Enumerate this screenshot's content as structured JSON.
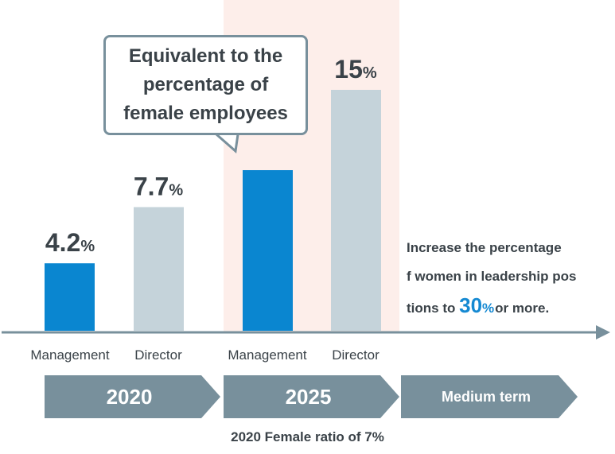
{
  "chart_data": {
    "type": "bar",
    "categories": [
      "Management",
      "Director",
      "Management",
      "Director"
    ],
    "values": [
      4.2,
      7.7,
      null,
      15
    ],
    "value_labels": [
      "4.2",
      "7.7",
      "",
      "15"
    ],
    "unit": "%",
    "groups": [
      "2020",
      "2020",
      "2025",
      "2025"
    ],
    "colors": [
      "#0a86d0",
      "#c5d3da",
      "#0a86d0",
      "#c5d3da"
    ],
    "highlight_color": "#fdeeea",
    "axis_color": "#78909c",
    "ylim": [
      0,
      20
    ],
    "title": "",
    "xlabel": "",
    "ylabel": ""
  },
  "timeline": [
    {
      "label": "2020"
    },
    {
      "label": "2025"
    },
    {
      "label": "Medium term"
    }
  ],
  "callout": {
    "text": "Equivalent to the percentage of female employees"
  },
  "note": {
    "prefix": "Increase the percentage of women in leadership positions to",
    "highlight_value": "30",
    "highlight_unit": "%",
    "suffix": "or more."
  },
  "footer": {
    "text": "2020   Female ratio of 7%"
  }
}
